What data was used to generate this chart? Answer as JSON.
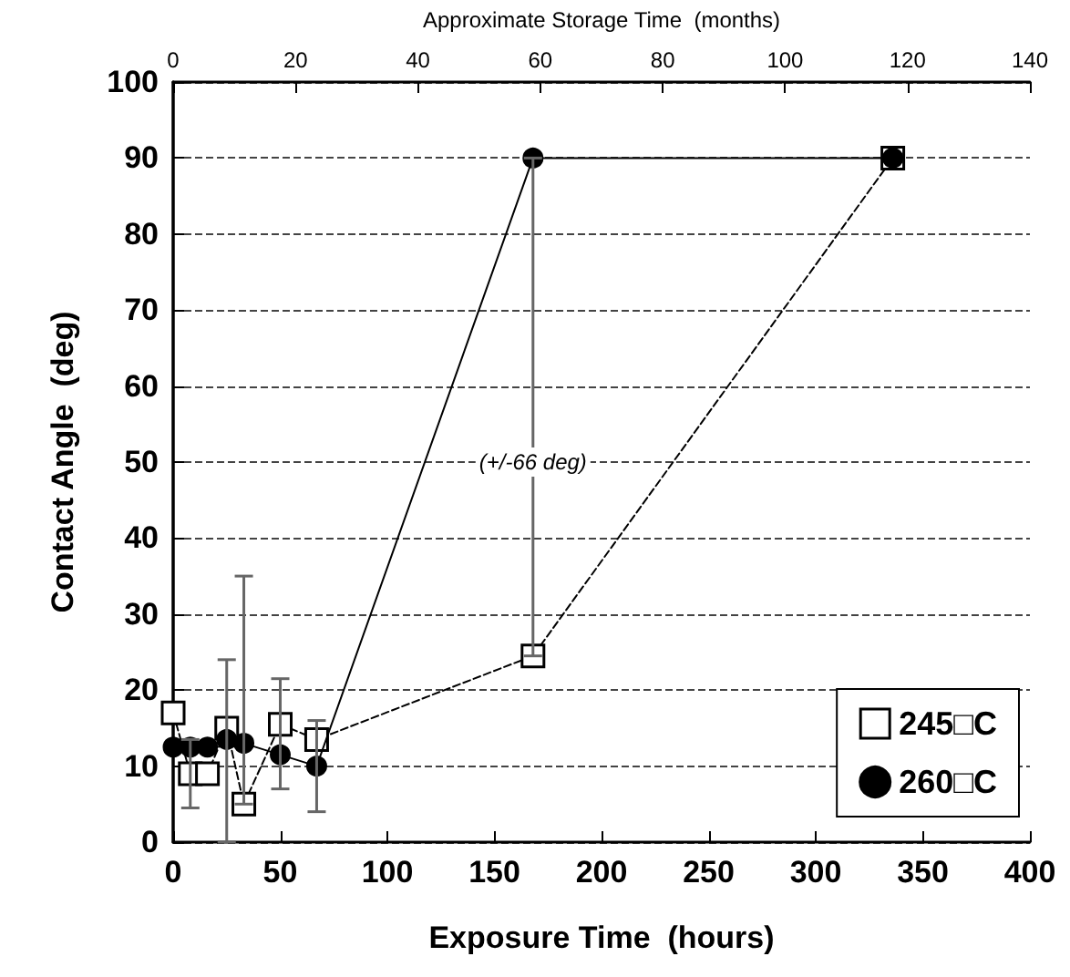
{
  "chart_data": {
    "type": "line",
    "xlabel": "Exposure Time  (hours)",
    "ylabel": "Contact Angle  (deg)",
    "x2label": "Approximate Storage Time  (months)",
    "xlim": [
      0,
      400
    ],
    "xticks": [
      0,
      50,
      100,
      150,
      200,
      250,
      300,
      350,
      400
    ],
    "x2lim": [
      0,
      140
    ],
    "x2ticks": [
      0,
      20,
      40,
      60,
      80,
      100,
      120,
      140
    ],
    "ylim": [
      0,
      100
    ],
    "yticks": [
      0,
      10,
      20,
      30,
      40,
      50,
      60,
      70,
      80,
      90,
      100
    ],
    "grid": "y",
    "legend": "bottom right",
    "series": [
      {
        "name": "245□C",
        "color": "#000000",
        "marker": "square",
        "line_style": "dashed",
        "x": [
          0,
          8,
          16,
          25,
          33,
          50,
          67,
          168,
          336
        ],
        "values": [
          17,
          9,
          9,
          15,
          5,
          15.5,
          13.5,
          24.5,
          90
        ],
        "errors": [
          null,
          [
            4.5,
            13.5
          ],
          null,
          [
            0,
            24
          ],
          [
            5,
            35
          ],
          [
            7,
            21.5
          ],
          null,
          null,
          null
        ]
      },
      {
        "name": "260□C",
        "color": "#000000",
        "marker": "circle",
        "line_style": "solid",
        "x": [
          0,
          8,
          16,
          25,
          33,
          50,
          67,
          168,
          336
        ],
        "values": [
          12.5,
          12.5,
          12.5,
          13.5,
          13,
          11.5,
          10,
          90,
          90
        ],
        "errors": [
          null,
          null,
          null,
          null,
          null,
          null,
          [
            4,
            16
          ],
          [
            24.5,
            90
          ],
          null
        ]
      }
    ],
    "annotations": [
      {
        "text": "(+/-66 deg)",
        "x": 168,
        "y": 50
      }
    ]
  }
}
